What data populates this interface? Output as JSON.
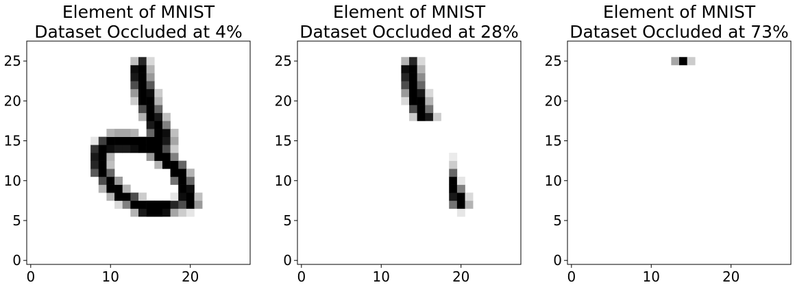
{
  "chart_data": [
    {
      "type": "heatmap",
      "title_lines": [
        "Element of MNIST",
        "Dataset Occluded at 4%"
      ],
      "colormap": "gray_r",
      "xlim": [
        -0.5,
        27.5
      ],
      "ylim": [
        27.5,
        -0.5
      ],
      "xticks": [
        "0",
        "10",
        "20"
      ],
      "yticks": [
        "0",
        "5",
        "10",
        "15",
        "20",
        "25"
      ],
      "grid": false,
      "pixel_rows": [
        {
          "row": 7,
          "cells": [
            [
              13,
              0.3
            ],
            [
              14,
              0.9
            ],
            [
              15,
              1.0
            ],
            [
              16,
              1.0
            ],
            [
              17,
              0.95
            ],
            [
              18,
              0.35
            ],
            [
              19,
              0.2
            ],
            [
              20,
              0.1
            ]
          ]
        },
        {
          "row": 8,
          "cells": [
            [
              11,
              0.15
            ],
            [
              12,
              0.5
            ],
            [
              13,
              1.0
            ],
            [
              14,
              1.0
            ],
            [
              15,
              1.0
            ],
            [
              16,
              1.0
            ],
            [
              17,
              1.0
            ],
            [
              18,
              0.85
            ],
            [
              19,
              0.7
            ],
            [
              20,
              1.0
            ],
            [
              21,
              0.4
            ]
          ]
        },
        {
          "row": 9,
          "cells": [
            [
              10,
              0.3
            ],
            [
              11,
              1.0
            ],
            [
              12,
              1.0
            ],
            [
              13,
              0.7
            ],
            [
              14,
              0.2
            ],
            [
              18,
              0.1
            ],
            [
              19,
              0.95
            ],
            [
              20,
              1.0
            ],
            [
              21,
              0.25
            ]
          ]
        },
        {
          "row": 10,
          "cells": [
            [
              9,
              0.3
            ],
            [
              10,
              1.0
            ],
            [
              11,
              1.0
            ],
            [
              12,
              0.3
            ],
            [
              19,
              1.0
            ],
            [
              20,
              0.95
            ]
          ]
        },
        {
          "row": 11,
          "cells": [
            [
              9,
              0.7
            ],
            [
              10,
              1.0
            ],
            [
              11,
              0.4
            ],
            [
              18,
              0.55
            ],
            [
              19,
              1.0
            ],
            [
              20,
              0.6
            ]
          ]
        },
        {
          "row": 12,
          "cells": [
            [
              8,
              0.65
            ],
            [
              9,
              1.0
            ],
            [
              10,
              0.6
            ],
            [
              18,
              1.0
            ],
            [
              19,
              1.0
            ],
            [
              20,
              0.3
            ]
          ]
        },
        {
          "row": 13,
          "cells": [
            [
              8,
              0.85
            ],
            [
              9,
              1.0
            ],
            [
              10,
              0.25
            ],
            [
              16,
              0.3
            ],
            [
              17,
              1.0
            ],
            [
              18,
              1.0
            ],
            [
              19,
              0.6
            ]
          ]
        },
        {
          "row": 14,
          "cells": [
            [
              8,
              0.9
            ],
            [
              9,
              1.0
            ],
            [
              10,
              0.3
            ],
            [
              15,
              0.4
            ],
            [
              16,
              1.0
            ],
            [
              17,
              1.0
            ],
            [
              18,
              0.5
            ]
          ]
        },
        {
          "row": 15,
          "cells": [
            [
              8,
              0.8
            ],
            [
              9,
              1.0
            ],
            [
              10,
              0.95
            ],
            [
              11,
              0.9
            ],
            [
              12,
              0.9
            ],
            [
              13,
              0.95
            ],
            [
              14,
              1.0
            ],
            [
              15,
              1.0
            ],
            [
              16,
              1.0
            ],
            [
              17,
              0.7
            ],
            [
              18,
              0.2
            ]
          ]
        },
        {
          "row": 16,
          "cells": [
            [
              8,
              0.1
            ],
            [
              9,
              0.75
            ],
            [
              10,
              1.0
            ],
            [
              11,
              1.0
            ],
            [
              12,
              1.0
            ],
            [
              13,
              1.0
            ],
            [
              14,
              1.0
            ],
            [
              15,
              1.0
            ],
            [
              16,
              1.0
            ],
            [
              17,
              0.9
            ],
            [
              18,
              0.35
            ]
          ]
        },
        {
          "row": 17,
          "cells": [
            [
              10,
              0.3
            ],
            [
              11,
              0.35
            ],
            [
              12,
              0.35
            ],
            [
              13,
              0.3
            ],
            [
              15,
              0.6
            ],
            [
              16,
              1.0
            ],
            [
              17,
              0.95
            ],
            [
              18,
              0.25
            ]
          ]
        },
        {
          "row": 18,
          "cells": [
            [
              15,
              0.9
            ],
            [
              16,
              1.0
            ],
            [
              17,
              0.5
            ]
          ]
        },
        {
          "row": 19,
          "cells": [
            [
              14,
              0.3
            ],
            [
              15,
              1.0
            ],
            [
              16,
              0.9
            ],
            [
              17,
              0.25
            ]
          ]
        },
        {
          "row": 20,
          "cells": [
            [
              14,
              0.7
            ],
            [
              15,
              1.0
            ],
            [
              16,
              0.6
            ]
          ]
        },
        {
          "row": 21,
          "cells": [
            [
              13,
              0.2
            ],
            [
              14,
              1.0
            ],
            [
              15,
              1.0
            ],
            [
              16,
              0.3
            ]
          ]
        },
        {
          "row": 22,
          "cells": [
            [
              13,
              0.4
            ],
            [
              14,
              1.0
            ],
            [
              15,
              0.95
            ],
            [
              16,
              0.2
            ]
          ]
        },
        {
          "row": 23,
          "cells": [
            [
              13,
              0.7
            ],
            [
              14,
              1.0
            ],
            [
              15,
              0.65
            ]
          ]
        },
        {
          "row": 24,
          "cells": [
            [
              13,
              0.9
            ],
            [
              14,
              1.0
            ],
            [
              15,
              0.4
            ]
          ]
        },
        {
          "row": 25,
          "cells": [
            [
              13,
              0.95
            ],
            [
              14,
              1.0
            ],
            [
              15,
              0.3
            ]
          ]
        },
        {
          "row": 26,
          "cells": [
            [
              13,
              0.25
            ],
            [
              14,
              0.85
            ],
            [
              15,
              0.15
            ]
          ]
        }
      ]
    },
    {
      "type": "heatmap",
      "title_lines": [
        "Element of MNIST",
        "Dataset Occluded at 28%"
      ],
      "colormap": "gray_r",
      "xlim": [
        -0.5,
        27.5
      ],
      "ylim": [
        27.5,
        -0.5
      ],
      "xticks": [
        "0",
        "10",
        "20"
      ],
      "yticks": [
        "0",
        "5",
        "10",
        "15",
        "20",
        "25"
      ],
      "grid": false,
      "pixel_rows": [
        {
          "row": 7,
          "cells": [
            [
              20,
              0.1
            ]
          ]
        },
        {
          "row": 8,
          "cells": [
            [
              19,
              0.55
            ],
            [
              20,
              1.0
            ],
            [
              21,
              0.3
            ]
          ]
        },
        {
          "row": 9,
          "cells": [
            [
              19,
              0.9
            ],
            [
              20,
              1.0
            ],
            [
              21,
              0.15
            ]
          ]
        },
        {
          "row": 10,
          "cells": [
            [
              19,
              1.0
            ],
            [
              20,
              0.5
            ]
          ]
        },
        {
          "row": 11,
          "cells": [
            [
              19,
              1.0
            ],
            [
              20,
              0.1
            ]
          ]
        },
        {
          "row": 12,
          "cells": [
            [
              19,
              0.6
            ]
          ]
        },
        {
          "row": 13,
          "cells": [
            [
              19,
              0.2
            ]
          ]
        },
        {
          "row": 14,
          "cells": [
            [
              19,
              0.08
            ]
          ]
        },
        {
          "row": 19,
          "cells": [
            [
              14,
              0.2
            ],
            [
              15,
              1.0
            ],
            [
              16,
              0.9
            ],
            [
              17,
              0.2
            ]
          ]
        },
        {
          "row": 20,
          "cells": [
            [
              14,
              0.7
            ],
            [
              15,
              1.0
            ],
            [
              16,
              0.55
            ]
          ]
        },
        {
          "row": 21,
          "cells": [
            [
              13,
              0.15
            ],
            [
              14,
              1.0
            ],
            [
              15,
              1.0
            ],
            [
              16,
              0.3
            ]
          ]
        },
        {
          "row": 22,
          "cells": [
            [
              13,
              0.4
            ],
            [
              14,
              1.0
            ],
            [
              15,
              0.9
            ],
            [
              16,
              0.15
            ]
          ]
        },
        {
          "row": 23,
          "cells": [
            [
              13,
              0.7
            ],
            [
              14,
              1.0
            ],
            [
              15,
              0.6
            ]
          ]
        },
        {
          "row": 24,
          "cells": [
            [
              13,
              0.85
            ],
            [
              14,
              1.0
            ],
            [
              15,
              0.45
            ]
          ]
        },
        {
          "row": 25,
          "cells": [
            [
              13,
              0.95
            ],
            [
              14,
              1.0
            ],
            [
              15,
              0.3
            ]
          ]
        },
        {
          "row": 26,
          "cells": [
            [
              13,
              0.3
            ],
            [
              14,
              0.85
            ],
            [
              15,
              0.15
            ]
          ]
        }
      ]
    },
    {
      "type": "heatmap",
      "title_lines": [
        "Element of MNIST",
        "Dataset Occluded at 73%"
      ],
      "colormap": "gray_r",
      "xlim": [
        -0.5,
        27.5
      ],
      "ylim": [
        27.5,
        -0.5
      ],
      "xticks": [
        "0",
        "10",
        "20"
      ],
      "yticks": [
        "0",
        "5",
        "10",
        "15",
        "20",
        "25"
      ],
      "grid": false,
      "pixel_rows": [
        {
          "row": 26,
          "cells": [
            [
              13,
              0.35
            ],
            [
              14,
              1.0
            ],
            [
              15,
              0.2
            ]
          ]
        }
      ]
    }
  ]
}
